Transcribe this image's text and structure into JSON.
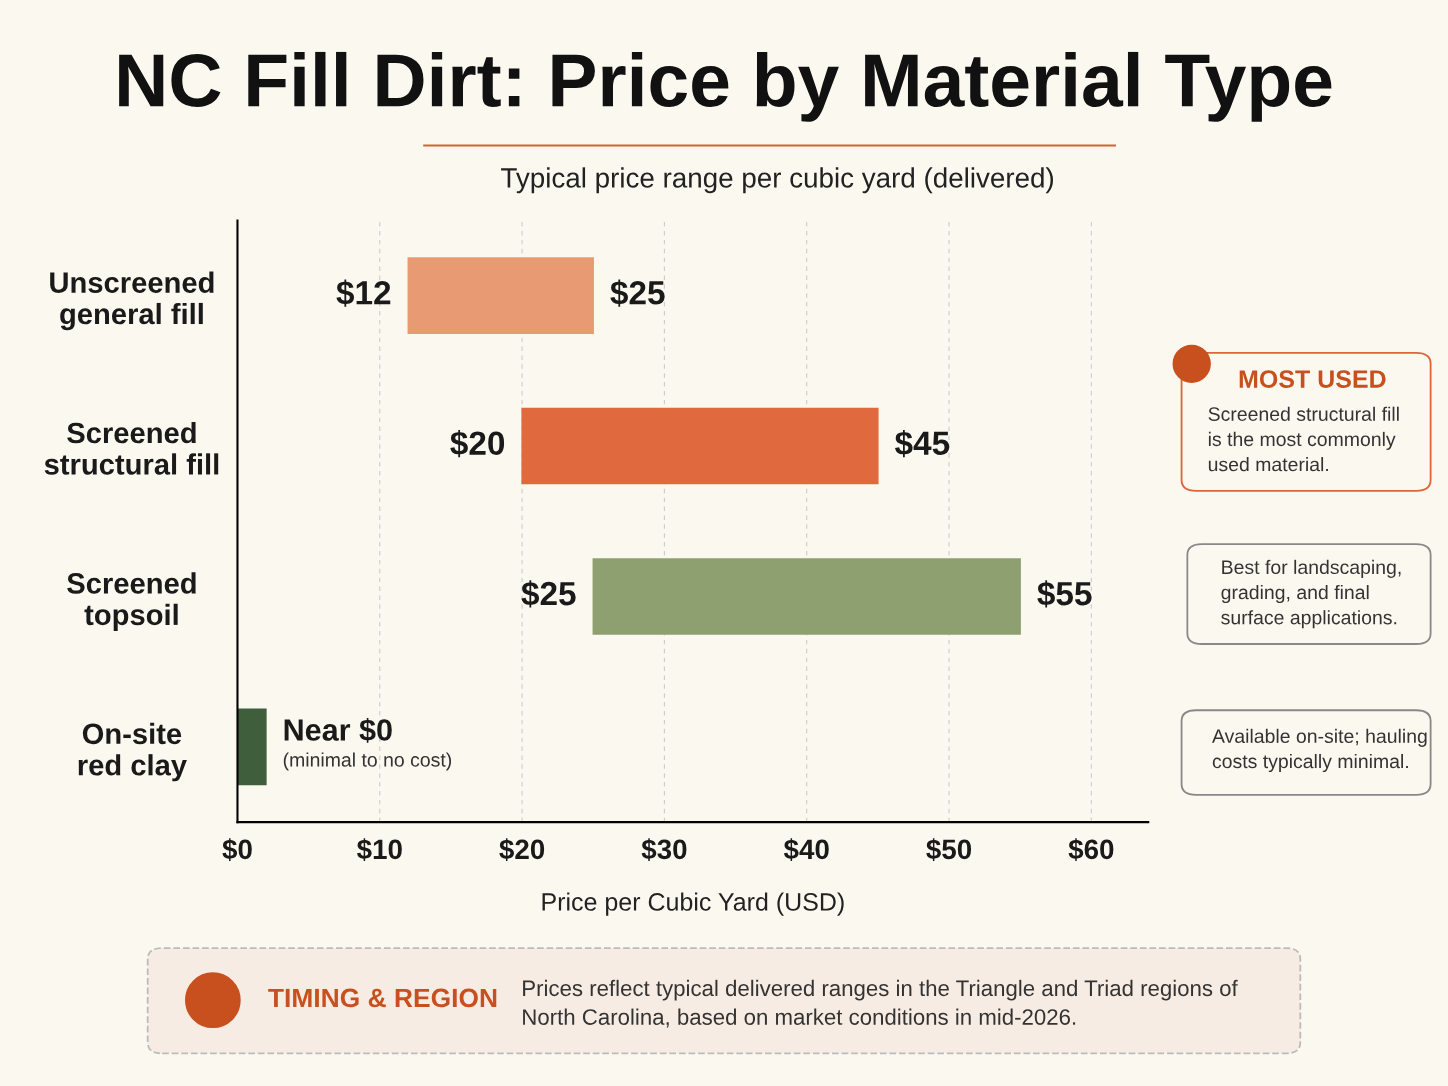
{
  "chart_data": {
    "type": "bar",
    "orientation": "horizontal",
    "title": "NC Fill Dirt: Price by Material Type",
    "subtitle": "Typical price range per cubic yard (delivered)",
    "xlabel": "Price per Cubic Yard (USD)",
    "categories": [
      "Unscreened\ngeneral fill",
      "Screened\nstructural fill",
      "Screened\ntopsoil",
      "On-site\nred clay"
    ],
    "base": [
      12,
      20,
      25,
      0
    ],
    "values": [
      13,
      25,
      30,
      2
    ],
    "colors": [
      "#e89b72",
      "#e06a3e",
      "#8fa070",
      "#3f5e3c"
    ],
    "xlim": [
      0,
      64
    ],
    "xticks": [
      {
        "value": 0,
        "label": "$0"
      },
      {
        "value": 10,
        "label": "$10"
      },
      {
        "value": 20,
        "label": "$20"
      },
      {
        "value": 30,
        "label": "$30"
      },
      {
        "value": 40,
        "label": "$40"
      },
      {
        "value": 50,
        "label": "$50"
      },
      {
        "value": 60,
        "label": "$60"
      }
    ],
    "grid": "x",
    "annotations": [
      "MOST USED",
      "Screened structural fill\nis the most commonly\nused material.",
      "Best for landscaping,\ngrading, and final\nsurface applications.",
      "Available on-site; hauling\ncosts typically minimal.",
      "TIMING & REGION",
      "Prices reflect typical delivered ranges in the Triangle and Triad regions of\nNorth Carolina, based on market conditions in mid-2026.",
      {
        "text": "$12",
        "x": 12,
        "y": "Unscreened\ngeneral fill"
      },
      {
        "text": "$25",
        "x": 25,
        "y": "Unscreened\ngeneral fill"
      },
      {
        "text": "$20",
        "x": 20,
        "y": "Screened\nstructural fill"
      },
      {
        "text": "$45",
        "x": 45,
        "y": "Screened\nstructural fill"
      },
      {
        "text": "$25",
        "x": 25,
        "y": "Screened\ntopsoil"
      },
      {
        "text": "$55",
        "x": 55,
        "y": "Screened\ntopsoil"
      },
      {
        "text": "Near $0",
        "x": 2,
        "y": "On-site\nred clay"
      },
      {
        "text": "(minimal to no cost)",
        "x": 2,
        "y": "On-site\nred clay"
      }
    ]
  }
}
